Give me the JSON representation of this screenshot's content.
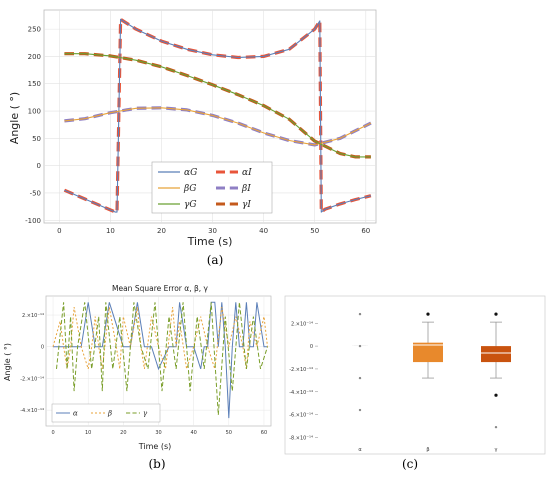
{
  "chart_data": [
    {
      "id": "a",
      "type": "line",
      "caption": "(a)",
      "xlabel": "Time (s)",
      "ylabel": "Angle ( °)",
      "xlim": [
        -3,
        62
      ],
      "ylim": [
        -105,
        285
      ],
      "xticks": [
        "0",
        "10",
        "20",
        "30",
        "40",
        "50",
        "60"
      ],
      "yticks": [
        "-100",
        "-50",
        "0",
        "50",
        "100",
        "150",
        "200",
        "250"
      ],
      "grid": true,
      "legend": {
        "position": "bottom-center",
        "labels": [
          "αG",
          "αI",
          "βG",
          "βI",
          "γG",
          "γI"
        ]
      },
      "series": [
        {
          "name": "αG",
          "color": "#5b7fb8",
          "style": "solid",
          "x": [
            1,
            11,
            11.3,
            12,
            15,
            20,
            25,
            30,
            35,
            40,
            45,
            50,
            51,
            51.3,
            52,
            55,
            58,
            61
          ],
          "y": [
            -45,
            -85,
            -85,
            268,
            250,
            228,
            213,
            203,
            198,
            200,
            213,
            250,
            265,
            -85,
            -80,
            -70,
            -62,
            -55
          ]
        },
        {
          "name": "αI",
          "color": "#e8553a",
          "style": "dashed",
          "x": [
            1,
            11,
            11.3,
            12,
            15,
            20,
            25,
            30,
            35,
            40,
            45,
            50,
            51,
            51.3,
            52,
            55,
            58,
            61
          ],
          "y": [
            -45,
            -85,
            -85,
            268,
            250,
            228,
            213,
            203,
            198,
            200,
            213,
            250,
            265,
            -85,
            -80,
            -70,
            -62,
            -55
          ]
        },
        {
          "name": "βG",
          "color": "#e8a33a",
          "style": "solid",
          "x": [
            1,
            5,
            10,
            15,
            20,
            25,
            30,
            35,
            40,
            45,
            50,
            55,
            61
          ],
          "y": [
            82,
            86,
            97,
            105,
            106,
            102,
            92,
            78,
            60,
            46,
            38,
            50,
            78
          ]
        },
        {
          "name": "βI",
          "color": "#8f7fc4",
          "style": "dashed",
          "x": [
            1,
            5,
            10,
            15,
            20,
            25,
            30,
            35,
            40,
            45,
            50,
            55,
            61
          ],
          "y": [
            82,
            86,
            97,
            105,
            106,
            102,
            92,
            78,
            60,
            46,
            38,
            50,
            78
          ]
        },
        {
          "name": "γG",
          "color": "#6aa033",
          "style": "solid",
          "x": [
            1,
            5,
            10,
            15,
            20,
            25,
            30,
            35,
            40,
            45,
            50,
            55,
            58,
            61
          ],
          "y": [
            205,
            205,
            201,
            193,
            181,
            165,
            148,
            130,
            110,
            85,
            45,
            22,
            16,
            16
          ]
        },
        {
          "name": "γI",
          "color": "#c45a1c",
          "style": "dashed",
          "x": [
            1,
            5,
            10,
            15,
            20,
            25,
            30,
            35,
            40,
            45,
            50,
            55,
            58,
            61
          ],
          "y": [
            205,
            205,
            201,
            193,
            181,
            165,
            148,
            130,
            110,
            85,
            45,
            22,
            16,
            16
          ]
        }
      ]
    },
    {
      "id": "b",
      "type": "line",
      "caption": "(b)",
      "title": "Mean Square Error α, β, γ",
      "xlabel": "Time (s)",
      "ylabel": "Angle ( °)",
      "xlim": [
        -2,
        62
      ],
      "ylim": [
        -5e-14,
        3.2e-14
      ],
      "xticks": [
        "0",
        "10",
        "20",
        "30",
        "40",
        "50",
        "60"
      ],
      "yticks": [
        "2.×10⁻¹⁴",
        "0",
        "-2.×10⁻¹⁴",
        "-4.×10⁻¹⁴"
      ],
      "grid": true,
      "legend": {
        "position": "bottom-left",
        "labels": [
          "α",
          "β",
          "γ"
        ]
      },
      "series": [
        {
          "name": "α",
          "color": "#5b7fb8",
          "style": "solid",
          "x": [
            0,
            8,
            10,
            12,
            14,
            16,
            20,
            22,
            24,
            26,
            28,
            30,
            33,
            35,
            36,
            38,
            40,
            42,
            43,
            44,
            45,
            46,
            47,
            48,
            49,
            50,
            51,
            52,
            53,
            54,
            55,
            56,
            57,
            58,
            60,
            61
          ],
          "y": [
            0,
            0,
            2.8e-14,
            0,
            0,
            2.8e-14,
            0,
            0,
            2.8e-14,
            0,
            0,
            -1.4e-14,
            0,
            0,
            2.8e-14,
            0,
            0,
            -1.4e-14,
            0,
            0,
            2.8e-14,
            2.8e-14,
            0,
            2.8e-14,
            0,
            -4.5e-14,
            0,
            2.8e-14,
            0,
            0,
            2.8e-14,
            0,
            0,
            2.8e-14,
            0,
            0
          ]
        },
        {
          "name": "β",
          "color": "#e8a33a",
          "style": "dotted",
          "x": [
            0,
            2,
            3,
            4,
            5,
            6,
            8,
            10,
            11,
            12,
            13,
            14,
            16,
            18,
            19,
            20,
            22,
            24,
            25,
            26,
            28,
            30,
            32,
            34,
            35,
            36,
            38,
            40,
            42,
            44,
            46,
            48,
            50,
            52,
            54,
            55,
            56,
            58,
            60,
            61
          ],
          "y": [
            0,
            1.6e-14,
            0,
            -1.4e-14,
            0,
            2.5e-14,
            0,
            -1.4e-14,
            0,
            1.9e-14,
            0,
            -1.4e-14,
            2.5e-14,
            0,
            -1.4e-14,
            1.9e-14,
            0,
            2.5e-14,
            0,
            -1.4e-14,
            1.9e-14,
            0,
            -1.4e-14,
            2.5e-14,
            0,
            1.6e-14,
            -1.4e-14,
            0,
            1.9e-14,
            0,
            -1.4e-14,
            2.5e-14,
            0,
            1.9e-14,
            0,
            -1.4e-14,
            1.6e-14,
            0,
            1.9e-14,
            0
          ]
        },
        {
          "name": "γ",
          "color": "#7a9e2a",
          "style": "dashed",
          "x": [
            1,
            3,
            4,
            5,
            6,
            7,
            9,
            11,
            13,
            14,
            15,
            17,
            19,
            21,
            23,
            25,
            27,
            29,
            31,
            33,
            35,
            37,
            39,
            41,
            43,
            45,
            47,
            49,
            51,
            53,
            55,
            57,
            59,
            61
          ],
          "y": [
            -1.4e-14,
            2.8e-14,
            -1.4e-14,
            1.9e-14,
            -2.8e-14,
            0,
            2.8e-14,
            -1.4e-14,
            1.9e-14,
            -2.8e-14,
            2.8e-14,
            -1.4e-14,
            1.9e-14,
            -2.8e-14,
            2.8e-14,
            0,
            -1.4e-14,
            2.8e-14,
            -2.8e-14,
            1.9e-14,
            -1.4e-14,
            2.8e-14,
            -2.8e-14,
            1.9e-14,
            -1.4e-14,
            2.8e-14,
            -4.3e-14,
            1.9e-14,
            -2.8e-14,
            2.8e-14,
            -1.4e-14,
            1.9e-14,
            -1.4e-14,
            0
          ]
        }
      ]
    },
    {
      "id": "c",
      "type": "box",
      "caption": "(c)",
      "categories": [
        "α",
        "β",
        "γ"
      ],
      "ylim": [
        -8.4e-14,
        3.6e-14
      ],
      "yticks": [
        "2.×10⁻¹⁴",
        "0",
        "-2.×10⁻¹⁴",
        "-4.×10⁻¹⁴",
        "-6.×10⁻¹⁴",
        "-8.×10⁻¹⁴"
      ],
      "boxes": [
        {
          "name": "α",
          "color": "#aaaaaa",
          "q1": 0,
          "median": 0,
          "q3": 0,
          "whisker_low": 0,
          "whisker_high": 0,
          "outliers": [
            2.8e-14,
            -2.8e-14,
            -5.6e-14,
            0
          ]
        },
        {
          "name": "β",
          "color": "#e8892c",
          "q1": -1.4e-14,
          "median": 1e-15,
          "q3": 3e-15,
          "whisker_low": -2.8e-14,
          "whisker_high": 2.1e-14,
          "outliers": [
            2.8e-14
          ]
        },
        {
          "name": "γ",
          "color": "#c9530f",
          "q1": -1.4e-14,
          "median": -6e-15,
          "q3": 0,
          "whisker_low": -2.8e-14,
          "whisker_high": 2.1e-14,
          "outliers": [
            2.8e-14,
            -4.3e-14,
            -7.1e-14
          ]
        }
      ]
    }
  ]
}
